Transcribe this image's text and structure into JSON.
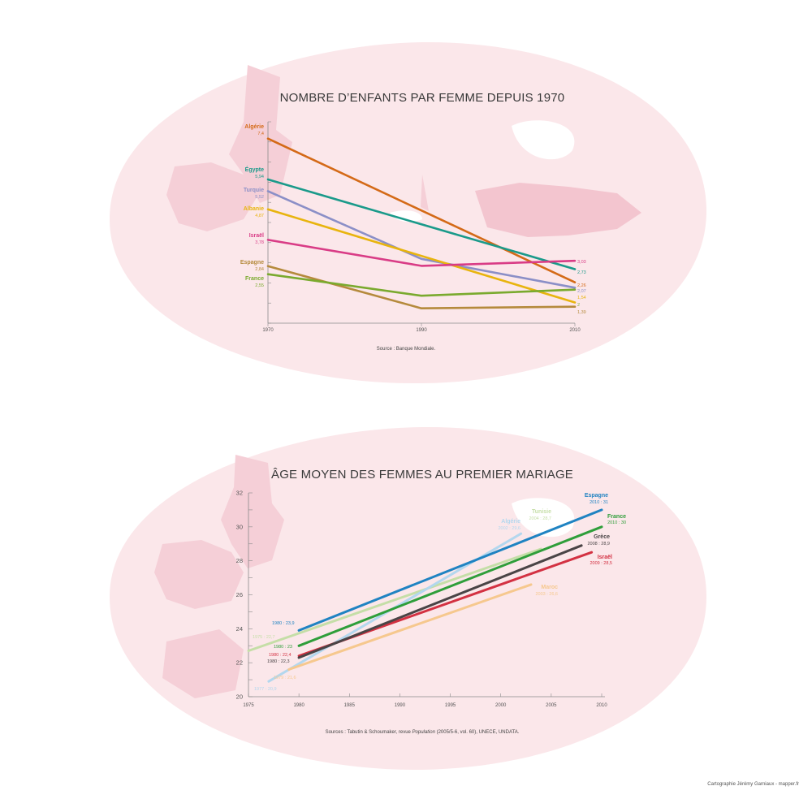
{
  "credit": "Cartographie Jérémy Garniaux - mapper.fr",
  "chart_data": [
    {
      "type": "line",
      "title": "NOMBRE D’ENFANTS PAR FEMME DEPUIS 1970",
      "x_ticks": [
        "1970",
        "1990",
        "2010"
      ],
      "xlim": [
        1970,
        2010
      ],
      "ylim": [
        0.8,
        8
      ],
      "grid": false,
      "legend": "none",
      "source": "Source : Banque Mondiale.",
      "series": [
        {
          "name": "Algérie",
          "start_label": "7,4",
          "end_label": "2,26",
          "color": "#d46a17",
          "points": [
            [
              1970,
              7.4
            ],
            [
              2010,
              2.26
            ]
          ]
        },
        {
          "name": "Égypte",
          "start_label": "5,94",
          "end_label": "2,73",
          "color": "#1a9a8a",
          "points": [
            [
              1970,
              5.94
            ],
            [
              2010,
              2.73
            ]
          ]
        },
        {
          "name": "Turquie",
          "start_label": "5,52",
          "end_label": "2,07",
          "color": "#8b8fc7",
          "points": [
            [
              1970,
              5.52
            ],
            [
              1990,
              3.1
            ],
            [
              2010,
              2.07
            ]
          ]
        },
        {
          "name": "Albanie",
          "start_label": "4,87",
          "end_label": "1,54",
          "color": "#e8b40e",
          "points": [
            [
              1970,
              4.87
            ],
            [
              2010,
              1.54
            ]
          ]
        },
        {
          "name": "Israël",
          "start_label": "3,78",
          "end_label": "3,03",
          "color": "#d93c86",
          "points": [
            [
              1970,
              3.78
            ],
            [
              1990,
              2.85
            ],
            [
              2010,
              3.03
            ]
          ]
        },
        {
          "name": "Espagne",
          "start_label": "2,84",
          "end_label": "1,39",
          "color": "#b58a3c",
          "points": [
            [
              1970,
              2.84
            ],
            [
              1990,
              1.33
            ],
            [
              2010,
              1.39
            ]
          ]
        },
        {
          "name": "France",
          "start_label": "2,55",
          "end_label": "2",
          "color": "#7aaa2e",
          "points": [
            [
              1970,
              2.55
            ],
            [
              1990,
              1.78
            ],
            [
              2010,
              2.0
            ]
          ]
        }
      ]
    },
    {
      "type": "line",
      "title": "ÂGE MOYEN DES FEMMES AU PREMIER MARIAGE",
      "x_ticks": [
        "1975",
        "1980",
        "1985",
        "1990",
        "1995",
        "2000",
        "2005",
        "2010"
      ],
      "y_ticks": [
        "20",
        "22",
        "24",
        "26",
        "28",
        "30",
        "32"
      ],
      "xlim": [
        1975,
        2010
      ],
      "ylim": [
        20,
        32
      ],
      "grid": false,
      "legend": "none",
      "source_pre": "Sources : Tabutin & Schoumaker, revue ",
      "source_italic": "Population",
      "source_post": " (2005/5-6, vol. 60), UNECE, UNDATA.",
      "series": [
        {
          "name": "Espagne",
          "start_label": "1980 : 23,9",
          "end_label": "2010 : 31",
          "color": "#1f83c2",
          "points": [
            [
              1980,
              23.9
            ],
            [
              2010,
              31
            ]
          ]
        },
        {
          "name": "France",
          "start_label": "1980 : 23",
          "end_label": "2010 : 30",
          "color": "#2f9e3a",
          "points": [
            [
              1980,
              23
            ],
            [
              2010,
              30
            ]
          ]
        },
        {
          "name": "Grèce",
          "start_label": "1980 : 22,3",
          "end_label": "2008 : 28,9",
          "color": "#4a4446",
          "points": [
            [
              1980,
              22.3
            ],
            [
              2008,
              28.9
            ]
          ]
        },
        {
          "name": "Israël",
          "start_label": "1980 : 22,4",
          "end_label": "2009 : 28,5",
          "color": "#d33142",
          "points": [
            [
              1980,
              22.4
            ],
            [
              2009,
              28.5
            ]
          ]
        },
        {
          "name": "Tunisie",
          "start_label": "1975 : 22,7",
          "end_label": "2004 : 28,7",
          "color": "#c5dea7",
          "points": [
            [
              1975,
              22.7
            ],
            [
              2004,
              28.7
            ]
          ]
        },
        {
          "name": "Algérie",
          "start_label": "1977 : 20,9",
          "end_label": "2002 : 29,6",
          "color": "#b3d7ee",
          "points": [
            [
              1977,
              20.9
            ],
            [
              2002,
              29.6
            ]
          ]
        },
        {
          "name": "Maroc",
          "start_label": "1979 : 21,6",
          "end_label": "2003 : 26,6",
          "color": "#f6c88e",
          "points": [
            [
              1979,
              21.6
            ],
            [
              2003,
              26.6
            ]
          ]
        }
      ]
    }
  ]
}
